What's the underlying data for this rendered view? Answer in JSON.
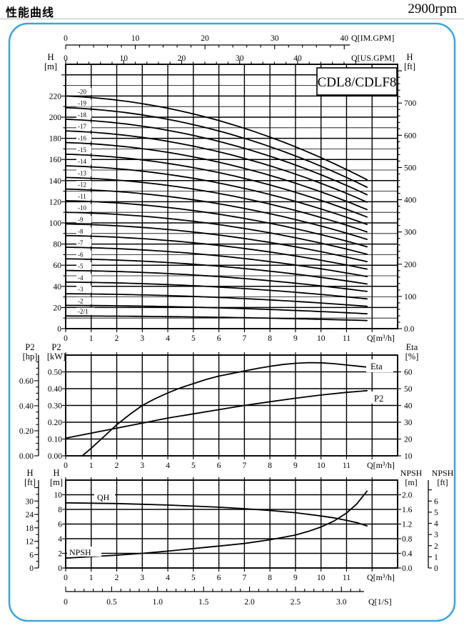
{
  "page": {
    "title_cn": "性能曲线",
    "rpm": "2900rpm"
  },
  "frame": {
    "border_color": "#3ba4d9"
  },
  "chart_data": {
    "type": "line",
    "title": "CDL8/CDLF8 pump performance curves, 2900rpm",
    "model_box_label": "CDL8/CDLF8",
    "flow_axis": {
      "unit_label": "Q[m³/h]",
      "tick_labels": [
        0,
        1,
        2,
        3,
        4,
        5,
        6,
        7,
        8,
        9,
        10,
        11
      ],
      "grid_max": 13,
      "top_axes": [
        {
          "name": "imperial-gpm",
          "unit_label": "Q[IM.GPM]",
          "labels": [
            0,
            10,
            20,
            30,
            40
          ],
          "major_step": 10,
          "minor_step": 2,
          "max_tick": 40,
          "per_m3h": 3.6662
        },
        {
          "name": "us-gpm",
          "unit_label": "Q[US.GPM]",
          "labels": [
            0,
            10,
            20,
            30,
            40
          ],
          "major_step": 10,
          "minor_step": 2,
          "max_tick": 50,
          "per_m3h": 4.4029
        }
      ],
      "bottom_axis": {
        "name": "liters-per-second",
        "unit_label": "Q[1/S]",
        "labels": [
          "0",
          "0.5",
          "1.0",
          "1.5",
          "2.0",
          "2.5",
          "3.0"
        ],
        "values": [
          0,
          0.5,
          1.0,
          1.5,
          2.0,
          2.5,
          3.0
        ],
        "major_step": 0.5,
        "minor_step": 0.1,
        "max_tick": 3.2,
        "per_m3h": 0.27778
      }
    },
    "head_chart": {
      "y_left": {
        "header": [
          "H",
          "[m]"
        ],
        "min": 0,
        "max": 250,
        "grid_step": 10,
        "major_step": 20,
        "labels": [
          0,
          20,
          40,
          60,
          80,
          100,
          120,
          140,
          160,
          180,
          200,
          220
        ]
      },
      "y_right": {
        "header": [
          "H",
          "[ft]"
        ],
        "labels": [
          "0.0",
          "100",
          "200",
          "300",
          "400",
          "500",
          "600",
          "700"
        ],
        "values": [
          0,
          100,
          200,
          300,
          400,
          500,
          600,
          700
        ],
        "minor_step": 20,
        "max_tick": 800,
        "m_per_ft": 0.3048
      },
      "curve_shape": {
        "q_start": 0,
        "q_end": 11.8,
        "end_head_ratio": 0.64,
        "linear_share": 0.14
      },
      "stages": [
        {
          "label": "-2/1",
          "shutoff_head_m": 12
        },
        {
          "label": "-2",
          "shutoff_head_m": 22
        },
        {
          "label": "-3",
          "shutoff_head_m": 33
        },
        {
          "label": "-4",
          "shutoff_head_m": 44
        },
        {
          "label": "-5",
          "shutoff_head_m": 55
        },
        {
          "label": "-6",
          "shutoff_head_m": 66
        },
        {
          "label": "-7",
          "shutoff_head_m": 77
        },
        {
          "label": "-8",
          "shutoff_head_m": 88
        },
        {
          "label": "-9",
          "shutoff_head_m": 99
        },
        {
          "label": "-10",
          "shutoff_head_m": 110
        },
        {
          "label": "-11",
          "shutoff_head_m": 121
        },
        {
          "label": "-12",
          "shutoff_head_m": 132
        },
        {
          "label": "-13",
          "shutoff_head_m": 143
        },
        {
          "label": "-14",
          "shutoff_head_m": 154
        },
        {
          "label": "-15",
          "shutoff_head_m": 165
        },
        {
          "label": "-16",
          "shutoff_head_m": 176
        },
        {
          "label": "-17",
          "shutoff_head_m": 187
        },
        {
          "label": "-18",
          "shutoff_head_m": 198
        },
        {
          "label": "-19",
          "shutoff_head_m": 209
        },
        {
          "label": "-20",
          "shutoff_head_m": 220
        }
      ]
    },
    "power_chart": {
      "y_left_outer": {
        "header": [
          "P2",
          "[hp]"
        ],
        "labels": [
          "0.00",
          "0.20",
          "0.40",
          "0.60"
        ],
        "values": [
          0,
          0.2,
          0.4,
          0.6
        ],
        "major_step": 0.2,
        "minor_step": 0.05,
        "max_tick": 0.75,
        "hp_per_kw": 1.341
      },
      "y_left_inner": {
        "header": [
          "P2",
          "[kW]"
        ],
        "min": 0,
        "max": 0.6,
        "grid_step": 0.1,
        "labels": [
          "0.00",
          "0.10",
          "0.20",
          "0.30",
          "0.40",
          "0.50"
        ],
        "values": [
          0,
          0.1,
          0.2,
          0.3,
          0.4,
          0.5
        ]
      },
      "y_right": {
        "header": [
          "Eta",
          "[%]"
        ],
        "labels": [
          10,
          20,
          30,
          40,
          50,
          60
        ],
        "eta_at_kw0": 10,
        "eta_per_kw": 100
      },
      "eta_curve": {
        "label": "Eta",
        "points_q_eta": [
          [
            0.65,
            10
          ],
          [
            1,
            14.5
          ],
          [
            1.5,
            21.5
          ],
          [
            2,
            28.5
          ],
          [
            2.5,
            34.5
          ],
          [
            3,
            40
          ],
          [
            3.5,
            44
          ],
          [
            4,
            47.5
          ],
          [
            4.5,
            50.5
          ],
          [
            5,
            53
          ],
          [
            5.5,
            55.5
          ],
          [
            6,
            57.5
          ],
          [
            6.5,
            59
          ],
          [
            7,
            60.5
          ],
          [
            7.5,
            62
          ],
          [
            8,
            63.3
          ],
          [
            8.5,
            64.4
          ],
          [
            9,
            65.1
          ],
          [
            9.5,
            65.5
          ],
          [
            10,
            65.4
          ],
          [
            10.5,
            64.9
          ],
          [
            11,
            64.1
          ],
          [
            11.4,
            63.5
          ],
          [
            11.8,
            62.8
          ]
        ]
      },
      "p2_curve": {
        "label": "P2",
        "points_q_kw": [
          [
            0,
            0.105
          ],
          [
            1,
            0.135
          ],
          [
            2,
            0.165
          ],
          [
            3,
            0.195
          ],
          [
            4,
            0.225
          ],
          [
            5,
            0.25
          ],
          [
            6,
            0.275
          ],
          [
            7,
            0.3
          ],
          [
            8,
            0.322
          ],
          [
            9,
            0.343
          ],
          [
            10,
            0.362
          ],
          [
            11,
            0.378
          ],
          [
            11.8,
            0.388
          ]
        ]
      }
    },
    "npsh_chart": {
      "y_left_outer": {
        "header": [
          "H",
          "[ft]"
        ],
        "labels": [
          0,
          6,
          12,
          18,
          24,
          30
        ],
        "major_step": 6,
        "minor_step": 3,
        "max_tick": 36,
        "ft_per_m": 3.2808
      },
      "y_left_inner": {
        "header": [
          "H",
          "[m]"
        ],
        "min": 0,
        "max": 12,
        "grid_step": 2,
        "labels": [
          0,
          2,
          4,
          6,
          8,
          10
        ]
      },
      "y_right_inner": {
        "header": [
          "NPSH",
          "[m]"
        ],
        "min": 0,
        "max": 2.4,
        "grid_step": 0.4,
        "labels": [
          "0.0",
          "0.4",
          "0.8",
          "1.2",
          "1.6",
          "2.0"
        ],
        "values": [
          0,
          0.4,
          0.8,
          1.2,
          1.6,
          2.0
        ]
      },
      "y_right_outer": {
        "header": [
          "NPSH",
          "[ft]"
        ],
        "labels": [
          0,
          1,
          2,
          3,
          4,
          5,
          6
        ],
        "max_tick": 7,
        "ft_per_m": 3.2808
      },
      "qh_curve": {
        "label": "QH",
        "points_q_m": [
          [
            0,
            8.9
          ],
          [
            1,
            8.85
          ],
          [
            2,
            8.8
          ],
          [
            3,
            8.7
          ],
          [
            4,
            8.6
          ],
          [
            5,
            8.45
          ],
          [
            6,
            8.3
          ],
          [
            7,
            8.1
          ],
          [
            8,
            7.85
          ],
          [
            9,
            7.55
          ],
          [
            10,
            7.1
          ],
          [
            10.5,
            6.85
          ],
          [
            11,
            6.5
          ],
          [
            11.4,
            6.2
          ],
          [
            11.8,
            5.75
          ]
        ]
      },
      "npsh_curve": {
        "label": "NPSH",
        "points_q_npshm": [
          [
            0,
            0.27
          ],
          [
            1,
            0.31
          ],
          [
            2,
            0.35
          ],
          [
            3,
            0.4
          ],
          [
            4,
            0.46
          ],
          [
            5,
            0.53
          ],
          [
            6,
            0.6
          ],
          [
            7,
            0.67
          ],
          [
            8,
            0.77
          ],
          [
            9,
            0.9
          ],
          [
            9.5,
            1.0
          ],
          [
            10,
            1.12
          ],
          [
            10.5,
            1.28
          ],
          [
            11,
            1.5
          ],
          [
            11.4,
            1.75
          ],
          [
            11.8,
            2.1
          ]
        ]
      }
    }
  }
}
